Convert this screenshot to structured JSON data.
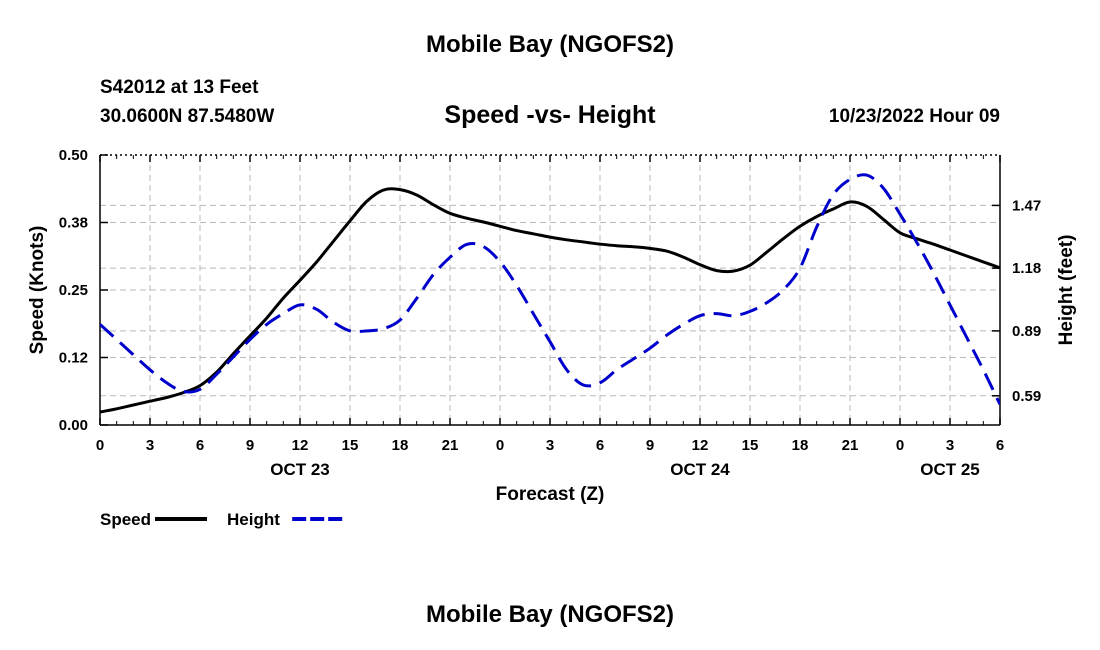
{
  "title": "Mobile Bay (NGOFS2)",
  "footer_title": "Mobile Bay (NGOFS2)",
  "station": {
    "line1": "S42012 at 13 Feet",
    "line2": "30.0600N  87.5480W"
  },
  "subtitle": "Speed -vs- Height",
  "datetime": "10/23/2022 Hour 09",
  "chart_data": {
    "type": "line",
    "title": "Speed -vs- Height",
    "xlabel": "Forecast (Z)",
    "ylabel": "Speed (Knots)",
    "y2label": "Height (feet)",
    "x_ticks": [
      "0",
      "3",
      "6",
      "9",
      "12",
      "15",
      "18",
      "21",
      "0",
      "3",
      "6",
      "9",
      "12",
      "15",
      "18",
      "21",
      "0",
      "3",
      "6"
    ],
    "date_labels": [
      {
        "label": "OCT 23",
        "at_hour": 12
      },
      {
        "label": "OCT 24",
        "at_hour": 36
      },
      {
        "label": "OCT 25",
        "at_hour": 51
      }
    ],
    "xlim": [
      0,
      54
    ],
    "ylim": [
      0,
      0.5
    ],
    "y_ticks": [
      "0.00",
      "0.12",
      "0.25",
      "0.38",
      "0.50"
    ],
    "y2lim": [
      0.455,
      1.703
    ],
    "y2_ticks": [
      "0.59",
      "0.89",
      "1.18",
      "1.47"
    ],
    "grid": true,
    "legend_position": "bottom-left",
    "series": [
      {
        "name": "Speed",
        "axis": "left",
        "color": "#000000",
        "style": "solid",
        "x": [
          0,
          1,
          2,
          3,
          4,
          5,
          6,
          7,
          8,
          9,
          10,
          11,
          12,
          13,
          14,
          15,
          16,
          17,
          18,
          19,
          20,
          21,
          22,
          23,
          24,
          25,
          26,
          27,
          28,
          29,
          30,
          31,
          32,
          33,
          34,
          35,
          36,
          37,
          38,
          39,
          40,
          41,
          42,
          43,
          44,
          45,
          46,
          47,
          48,
          49,
          50,
          51,
          52,
          53,
          54
        ],
        "y": [
          0.024,
          0.03,
          0.037,
          0.044,
          0.051,
          0.06,
          0.073,
          0.098,
          0.132,
          0.165,
          0.198,
          0.235,
          0.268,
          0.302,
          0.34,
          0.378,
          0.414,
          0.435,
          0.436,
          0.426,
          0.408,
          0.392,
          0.383,
          0.376,
          0.368,
          0.36,
          0.354,
          0.348,
          0.343,
          0.339,
          0.335,
          0.332,
          0.33,
          0.327,
          0.322,
          0.311,
          0.297,
          0.286,
          0.285,
          0.296,
          0.32,
          0.345,
          0.368,
          0.386,
          0.4,
          0.413,
          0.405,
          0.381,
          0.356,
          0.345,
          0.335,
          0.324,
          0.313,
          0.302,
          0.291
        ]
      },
      {
        "name": "Height",
        "axis": "right",
        "color": "#0000cc",
        "style": "dashed",
        "x": [
          0,
          1,
          2,
          3,
          4,
          5,
          6,
          7,
          8,
          9,
          10,
          11,
          12,
          13,
          14,
          15,
          16,
          17,
          18,
          19,
          20,
          21,
          22,
          23,
          24,
          25,
          26,
          27,
          28,
          29,
          30,
          31,
          32,
          33,
          34,
          35,
          36,
          37,
          38,
          39,
          40,
          41,
          42,
          43,
          44,
          45,
          46,
          47,
          48,
          49,
          50,
          51,
          52,
          53,
          54
        ],
        "y": [
          0.92,
          0.85,
          0.78,
          0.71,
          0.65,
          0.61,
          0.62,
          0.69,
          0.77,
          0.85,
          0.92,
          0.97,
          1.01,
          0.99,
          0.93,
          0.89,
          0.89,
          0.9,
          0.94,
          1.04,
          1.15,
          1.23,
          1.29,
          1.28,
          1.21,
          1.1,
          0.97,
          0.84,
          0.71,
          0.64,
          0.65,
          0.71,
          0.76,
          0.81,
          0.87,
          0.92,
          0.96,
          0.97,
          0.96,
          0.98,
          1.02,
          1.08,
          1.18,
          1.37,
          1.52,
          1.59,
          1.61,
          1.55,
          1.43,
          1.3,
          1.16,
          1.01,
          0.86,
          0.71,
          0.55
        ]
      }
    ]
  }
}
